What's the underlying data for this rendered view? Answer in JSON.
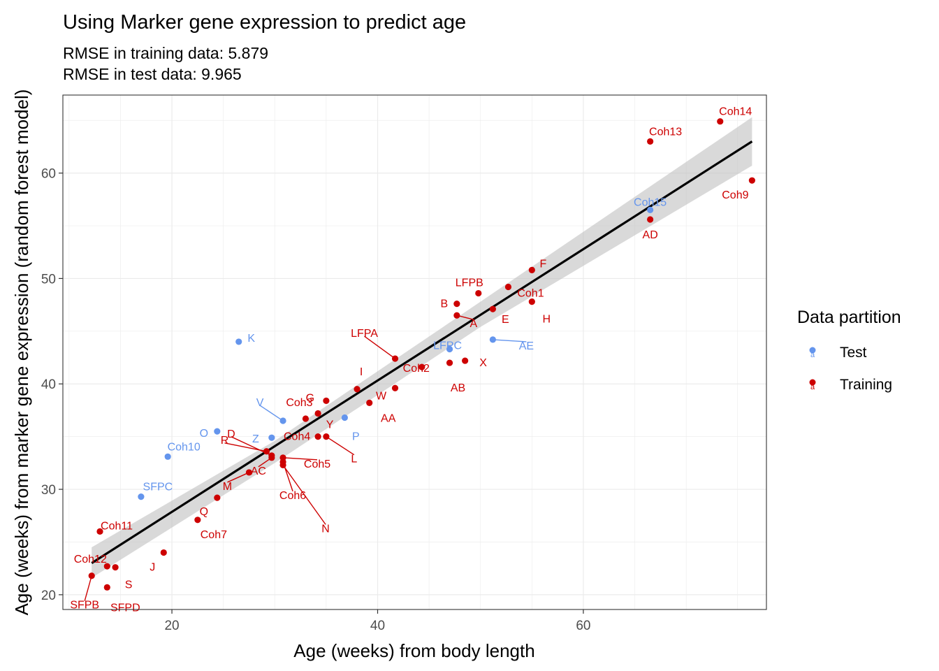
{
  "chart_data": {
    "type": "scatter",
    "title": "Using Marker gene expression to predict age",
    "subtitle": [
      "RMSE in training data: 5.879",
      "RMSE in test data: 9.965"
    ],
    "xlabel": "Age (weeks) from body length",
    "ylabel": "Age (weeks) from marker gene expression (random forest model)",
    "xlim": [
      9.4,
      77.8
    ],
    "ylim": [
      18.6,
      67.4
    ],
    "xticks": [
      20,
      40,
      60
    ],
    "yticks": [
      20,
      30,
      40,
      50,
      60
    ],
    "grid": true,
    "legend": {
      "title": "Data partition",
      "position": "right",
      "entries": [
        {
          "label": "Test",
          "color": "#6495ED"
        },
        {
          "label": "Training",
          "color": "#CD0000"
        }
      ]
    },
    "colors": {
      "Test": "#6495ED",
      "Training": "#CD0000",
      "fit": "#000000",
      "band": "#bfbfbf"
    },
    "fit_line": {
      "x": [
        12.2,
        76.4
      ],
      "y": [
        23.0,
        63.0
      ]
    },
    "confidence_band": {
      "x": [
        12.2,
        30,
        50,
        76.4
      ],
      "lower": [
        21.6,
        32.5,
        45.4,
        60.7
      ],
      "upper": [
        24.5,
        34.6,
        47.8,
        65.3
      ]
    },
    "series": [
      {
        "name": "Test",
        "points": [
          {
            "label": "K",
            "x": 26.5,
            "y": 44.0
          },
          {
            "label": "LFPC",
            "x": 47.0,
            "y": 43.3
          },
          {
            "label": "AE",
            "x": 51.2,
            "y": 44.2
          },
          {
            "label": "V",
            "x": 30.8,
            "y": 36.5
          },
          {
            "label": "O",
            "x": 24.4,
            "y": 35.5
          },
          {
            "label": "P",
            "x": 36.8,
            "y": 36.8
          },
          {
            "label": "Z",
            "x": 29.7,
            "y": 34.9
          },
          {
            "label": "Coh10",
            "x": 19.6,
            "y": 33.1
          },
          {
            "label": "SFPC",
            "x": 17.0,
            "y": 29.3
          },
          {
            "label": "Coh15",
            "x": 66.5,
            "y": 56.5
          }
        ]
      },
      {
        "name": "Training",
        "points": [
          {
            "label": "Coh14",
            "x": 73.3,
            "y": 64.9
          },
          {
            "label": "Coh13",
            "x": 66.5,
            "y": 63.0
          },
          {
            "label": "Coh9",
            "x": 76.4,
            "y": 59.3
          },
          {
            "label": "AD",
            "x": 66.5,
            "y": 55.6
          },
          {
            "label": "F",
            "x": 55.0,
            "y": 50.8
          },
          {
            "label": "LFPB",
            "x": 49.8,
            "y": 48.6
          },
          {
            "label": "Coh1",
            "x": 52.7,
            "y": 49.2
          },
          {
            "label": "H",
            "x": 55.0,
            "y": 47.8
          },
          {
            "label": "B",
            "x": 47.7,
            "y": 47.6
          },
          {
            "label": "A",
            "x": 47.7,
            "y": 46.5
          },
          {
            "label": "E",
            "x": 51.2,
            "y": 47.1
          },
          {
            "label": "LFPA",
            "x": 41.7,
            "y": 42.4
          },
          {
            "label": "Coh2",
            "x": 44.3,
            "y": 41.6
          },
          {
            "label": "X",
            "x": 48.5,
            "y": 42.2
          },
          {
            "label": "AB",
            "x": 47.0,
            "y": 42.0
          },
          {
            "label": "I",
            "x": 38.0,
            "y": 39.5
          },
          {
            "label": "W",
            "x": 41.7,
            "y": 39.6
          },
          {
            "label": "AA",
            "x": 39.2,
            "y": 38.2
          },
          {
            "label": "G",
            "x": 35.0,
            "y": 38.4
          },
          {
            "label": "Coh3",
            "x": 33.0,
            "y": 36.7
          },
          {
            "label": "Y",
            "x": 34.2,
            "y": 37.2
          },
          {
            "label": "L",
            "x": 35.0,
            "y": 35.0
          },
          {
            "label": "Coh4",
            "x": 34.2,
            "y": 35.0
          },
          {
            "label": "D",
            "x": 29.7,
            "y": 33.2
          },
          {
            "label": "R",
            "x": 29.2,
            "y": 33.6
          },
          {
            "label": "Coh5",
            "x": 30.8,
            "y": 33.0
          },
          {
            "label": "Coh6",
            "x": 30.8,
            "y": 32.6
          },
          {
            "label": "N",
            "x": 30.8,
            "y": 32.3
          },
          {
            "label": "AC",
            "x": 29.7,
            "y": 33.0
          },
          {
            "label": "M",
            "x": 27.5,
            "y": 31.6
          },
          {
            "label": "Q",
            "x": 24.4,
            "y": 29.2
          },
          {
            "label": "Coh7",
            "x": 22.5,
            "y": 27.1
          },
          {
            "label": "Coh11",
            "x": 13.0,
            "y": 26.0
          },
          {
            "label": "J",
            "x": 19.2,
            "y": 24.0
          },
          {
            "label": "Coh12",
            "x": 13.7,
            "y": 22.7
          },
          {
            "label": "S",
            "x": 14.5,
            "y": 22.6
          },
          {
            "label": "SFPB",
            "x": 12.2,
            "y": 21.8
          },
          {
            "label": "SFPD",
            "x": 13.7,
            "y": 20.7
          }
        ]
      }
    ]
  }
}
